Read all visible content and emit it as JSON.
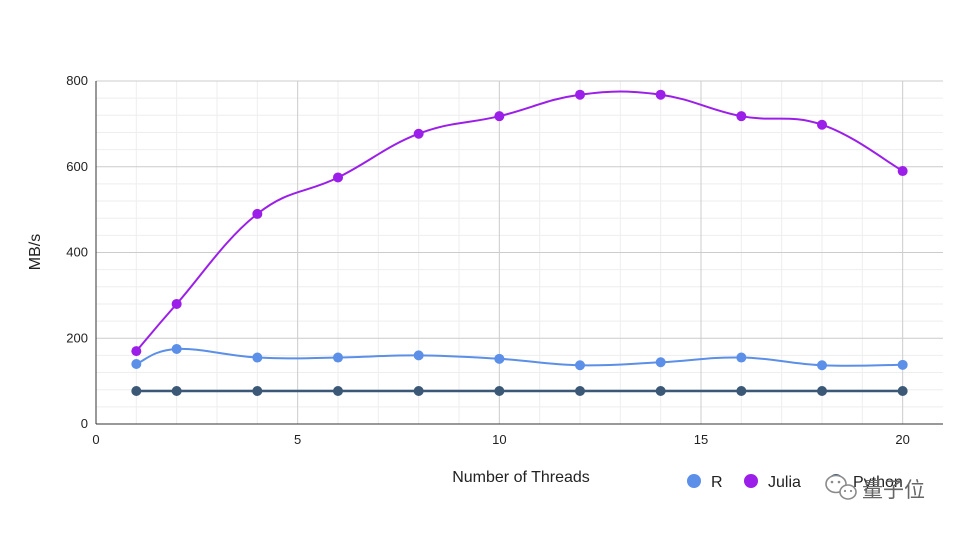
{
  "chart_data": {
    "type": "line",
    "title": "",
    "xlabel": "Number of Threads",
    "ylabel": "MB/s",
    "xlim": [
      0,
      21
    ],
    "ylim": [
      0,
      800
    ],
    "xticks": [
      0,
      5,
      10,
      15,
      20
    ],
    "yticks": [
      0,
      200,
      400,
      600,
      800
    ],
    "grid": true,
    "legend_position": "bottom-right",
    "x": [
      1,
      2,
      4,
      6,
      8,
      10,
      12,
      14,
      16,
      18,
      20
    ],
    "series": [
      {
        "name": "R",
        "color": "#5b8fe8",
        "values": [
          140,
          175,
          155,
          155,
          160,
          152,
          137,
          144,
          155,
          137,
          138
        ]
      },
      {
        "name": "Julia",
        "color": "#9b1fe8",
        "values": [
          170,
          280,
          490,
          575,
          677,
          718,
          768,
          768,
          718,
          698,
          590
        ]
      },
      {
        "name": "Python",
        "color": "#3b5876",
        "values": [
          77,
          77,
          77,
          77,
          77,
          77,
          77,
          77,
          77,
          77,
          77
        ]
      }
    ]
  },
  "watermark": {
    "icon": "wechat-icon",
    "text": "量子位"
  }
}
